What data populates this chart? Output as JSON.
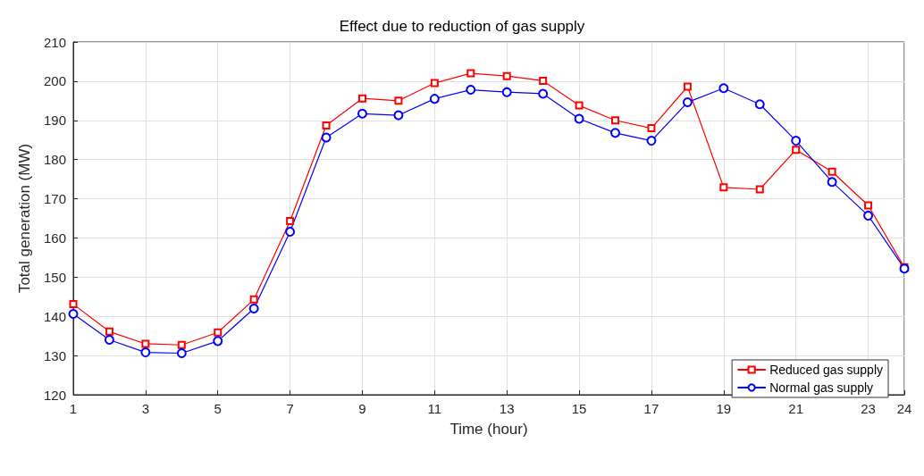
{
  "chart_data": {
    "type": "line",
    "title": "Effect due to reduction of gas supply",
    "xlabel": "Time (hour)",
    "ylabel": "Total generation (MW)",
    "x": [
      1,
      2,
      3,
      4,
      5,
      6,
      7,
      8,
      9,
      10,
      11,
      12,
      13,
      14,
      15,
      16,
      17,
      18,
      19,
      20,
      21,
      22,
      23,
      24
    ],
    "series": [
      {
        "name": "Reduced gas supply",
        "color": "#ff0000",
        "marker": "square",
        "values": [
          143.1,
          136.1,
          133.0,
          132.7,
          135.9,
          144.3,
          164.3,
          188.7,
          195.6,
          195.0,
          199.5,
          202.0,
          201.3,
          200.1,
          193.8,
          190.0,
          188.0,
          198.6,
          172.9,
          172.4,
          182.5,
          176.9,
          168.3,
          152.5
        ]
      },
      {
        "name": "Normal gas supply",
        "color": "#0000ff",
        "marker": "circle",
        "values": [
          140.6,
          134.0,
          130.8,
          130.6,
          133.7,
          142.0,
          161.6,
          185.6,
          191.7,
          191.3,
          195.5,
          197.8,
          197.2,
          196.8,
          190.4,
          186.8,
          184.8,
          194.6,
          198.2,
          194.1,
          184.8,
          174.3,
          165.7,
          152.2
        ]
      }
    ],
    "xlim": [
      1,
      24
    ],
    "xticks": [
      1,
      3,
      5,
      7,
      9,
      11,
      13,
      15,
      17,
      19,
      21,
      23,
      24
    ],
    "ylim": [
      120,
      210
    ],
    "yticks": [
      120,
      130,
      140,
      150,
      160,
      170,
      180,
      190,
      200,
      210
    ],
    "grid": true,
    "legend": "bottom right",
    "line_style": "solid"
  }
}
